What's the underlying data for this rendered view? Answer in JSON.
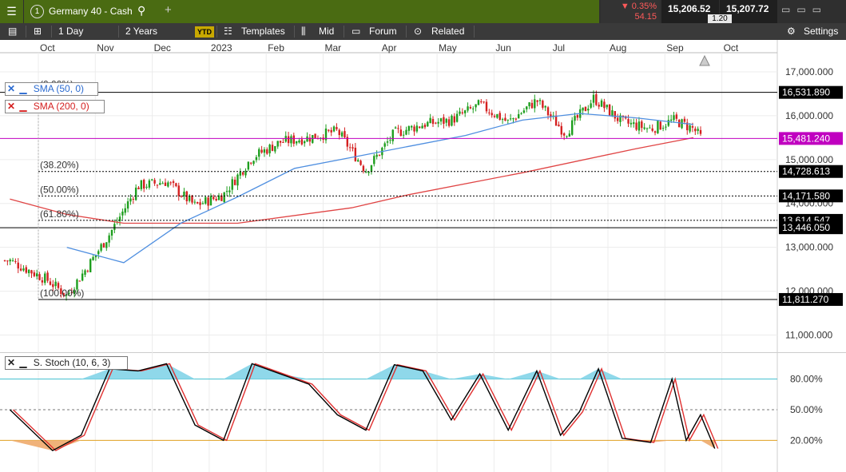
{
  "header": {
    "instrument_number": "1",
    "instrument_name": "Germany 40 - Cash",
    "change_pct": "▼ 0.35%",
    "change_pts": "54.15",
    "bid": "15,206.52",
    "ask": "15,207.72",
    "spread": "1.20"
  },
  "toolbar": {
    "interval": "1 Day",
    "range": "2 Years",
    "ytd": "YTD",
    "templates": "Templates",
    "price_type": "Mid",
    "forum": "Forum",
    "related": "Related",
    "settings": "Settings"
  },
  "indicators": {
    "sma50": "SMA (50, 0)",
    "sma200": "SMA (200, 0)",
    "stoch": "S. Stoch (10, 6, 3)"
  },
  "colors": {
    "candle_up": "#1e9e1e",
    "candle_down": "#d42020",
    "sma50": "#4f8fe0",
    "sma200": "#e04545",
    "resistance": "#c000c0",
    "stoch_k": "#000000",
    "stoch_d": "#e03030",
    "overbought_fill": "#8fd8ea",
    "oversold_fill": "#f0b27a",
    "band80": "#40c0d0",
    "band20": "#e0a020"
  },
  "chart_data": [
    {
      "type": "candlestick",
      "title": "Germany 40 - Cash",
      "x_ticks": [
        "Oct",
        "Nov",
        "Dec",
        "2023",
        "Feb",
        "Mar",
        "Apr",
        "May",
        "Jun",
        "Jul",
        "Aug",
        "Sep",
        "Oct"
      ],
      "y_ticks": [
        17000,
        16000,
        15000,
        14000,
        13000,
        12000,
        11000
      ],
      "y_tick_labels": [
        "17,000.000",
        "16,000.000",
        "15,000.000",
        "14,000.000",
        "13,000.000",
        "12,000.000",
        "11,000.000"
      ],
      "ylim": [
        10700,
        17400
      ],
      "close_path": [
        [
          "Sep 2022",
          12700
        ],
        [
          "Oct 2022",
          12250
        ],
        [
          "Oct 2022",
          11900
        ],
        [
          "Oct 2022",
          12500
        ],
        [
          "Nov 2022",
          13300
        ],
        [
          "Nov 2022",
          14400
        ],
        [
          "Dec 2022",
          14500
        ],
        [
          "Dec 2022",
          13950
        ],
        [
          "Jan 2023",
          14200
        ],
        [
          "Jan 2023",
          15050
        ],
        [
          "Feb 2023",
          15400
        ],
        [
          "Feb 2023",
          15500
        ],
        [
          "Mar 2023",
          15650
        ],
        [
          "Mar 2023",
          14750
        ],
        [
          "Apr 2023",
          15600
        ],
        [
          "Apr 2023",
          15800
        ],
        [
          "May 2023",
          15900
        ],
        [
          "May 2023",
          16250
        ],
        [
          "Jun 2023",
          15850
        ],
        [
          "Jun 2023",
          16350
        ],
        [
          "Jul 2023",
          15600
        ],
        [
          "Jul 2023",
          16400
        ],
        [
          "Aug 2023",
          15850
        ],
        [
          "Aug 2023",
          15700
        ],
        [
          "Sep 2023",
          15900
        ],
        [
          "Sep 2023",
          15700
        ],
        [
          "Sep 2023",
          15200
        ]
      ],
      "sma50_path": [
        [
          "Oct 2022",
          13000
        ],
        [
          "Nov 2022",
          12650
        ],
        [
          "Dec 2022",
          13550
        ],
        [
          "Jan 2023",
          14150
        ],
        [
          "Feb 2023",
          14800
        ],
        [
          "Mar 2023",
          15050
        ],
        [
          "Apr 2023",
          15300
        ],
        [
          "May 2023",
          15550
        ],
        [
          "Jun 2023",
          15900
        ],
        [
          "Jul 2023",
          16050
        ],
        [
          "Aug 2023",
          15950
        ],
        [
          "Sep 2023",
          15800
        ]
      ],
      "sma200_path": [
        [
          "Sep 2022",
          14100
        ],
        [
          "Oct 2022",
          13750
        ],
        [
          "Nov 2022",
          13550
        ],
        [
          "Jan 2023",
          13550
        ],
        [
          "Mar 2023",
          13900
        ],
        [
          "Apr 2023",
          14200
        ],
        [
          "Jun 2023",
          14700
        ],
        [
          "Aug 2023",
          15250
        ],
        [
          "Sep 2023",
          15500
        ]
      ],
      "horizontal_levels": [
        {
          "value": 16531.89,
          "label": "16,531.890",
          "style": "solid"
        },
        {
          "value": 15481.24,
          "label": "15,481.240",
          "style": "magenta"
        },
        {
          "value": 14728.613,
          "label": "14,728.613",
          "style": "dotted",
          "fib": "(38.20%)"
        },
        {
          "value": 14171.58,
          "label": "14,171.580",
          "style": "dotted",
          "fib": "(50.00%)"
        },
        {
          "value": 13614.547,
          "label": "13,614.547",
          "style": "dotted",
          "fib": "(61.80%)"
        },
        {
          "value": 13446.05,
          "label": "13,446.050",
          "style": "solid"
        },
        {
          "value": 11811.27,
          "label": "11,811.270",
          "style": "solid",
          "fib": "(100.00%)"
        }
      ],
      "fib_top_label": "(0.00%)"
    },
    {
      "type": "line",
      "title": "S. Stoch (10, 6, 3)",
      "y_ticks": [
        80,
        50,
        20
      ],
      "y_tick_labels": [
        "80.00%",
        "50.00%",
        "20.00%"
      ],
      "ylim": [
        0,
        100
      ],
      "k_path": [
        [
          "Sep 2022",
          50
        ],
        [
          "Oct 2022",
          10
        ],
        [
          "Oct 2022",
          25
        ],
        [
          "Nov 2022",
          90
        ],
        [
          "Nov 2022",
          88
        ],
        [
          "Dec 2022",
          95
        ],
        [
          "Dec 2022",
          35
        ],
        [
          "Jan 2023",
          20
        ],
        [
          "Jan 2023",
          95
        ],
        [
          "Feb 2023",
          85
        ],
        [
          "Feb 2023",
          75
        ],
        [
          "Mar 2023",
          45
        ],
        [
          "Mar 2023",
          30
        ],
        [
          "Apr 2023",
          94
        ],
        [
          "Apr 2023",
          88
        ],
        [
          "May 2023",
          40
        ],
        [
          "May 2023",
          85
        ],
        [
          "Jun 2023",
          30
        ],
        [
          "Jun 2023",
          88
        ],
        [
          "Jul 2023",
          25
        ],
        [
          "Jul 2023",
          48
        ],
        [
          "Jul 2023",
          90
        ],
        [
          "Aug 2023",
          22
        ],
        [
          "Aug 2023",
          18
        ],
        [
          "Sep 2023",
          80
        ],
        [
          "Sep 2023",
          20
        ],
        [
          "Sep 2023",
          45
        ],
        [
          "Sep 2023",
          12
        ]
      ]
    }
  ]
}
